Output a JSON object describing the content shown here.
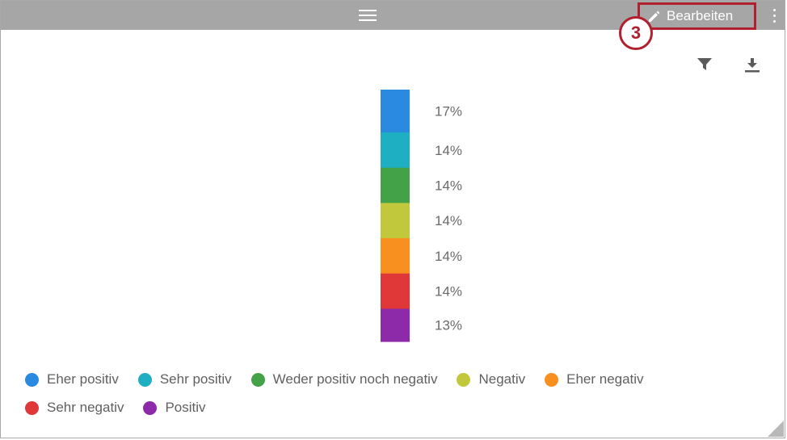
{
  "header": {
    "edit_label": "Bearbeiten",
    "step_number": "3",
    "menu_icon": "hamburger-icon",
    "edit_icon": "pencil-icon",
    "more_icon": "vertical-dots-icon"
  },
  "toolbar": {
    "filter_icon": "filter-icon",
    "download_icon": "download-icon"
  },
  "colors": {
    "header_bg": "#a6a6a6",
    "highlight": "#b0202f"
  },
  "chart_data": {
    "type": "bar",
    "stacked": true,
    "orientation": "vertical",
    "title": "",
    "xlabel": "",
    "ylabel": "",
    "series": [
      {
        "name": "Eher positiv",
        "value": 17,
        "label": "17%",
        "color": "#2a8ae0"
      },
      {
        "name": "Sehr positiv",
        "value": 14,
        "label": "14%",
        "color": "#1fafc3"
      },
      {
        "name": "Weder positiv noch negativ",
        "value": 14,
        "label": "14%",
        "color": "#43a147"
      },
      {
        "name": "Negativ",
        "value": 14,
        "label": "14%",
        "color": "#c2c83b"
      },
      {
        "name": "Eher negativ",
        "value": 14,
        "label": "14%",
        "color": "#f8901f"
      },
      {
        "name": "Sehr negativ",
        "value": 14,
        "label": "14%",
        "color": "#e03838"
      },
      {
        "name": "Positiv",
        "value": 13,
        "label": "13%",
        "color": "#8d2aaa"
      }
    ],
    "legend_position": "bottom"
  }
}
